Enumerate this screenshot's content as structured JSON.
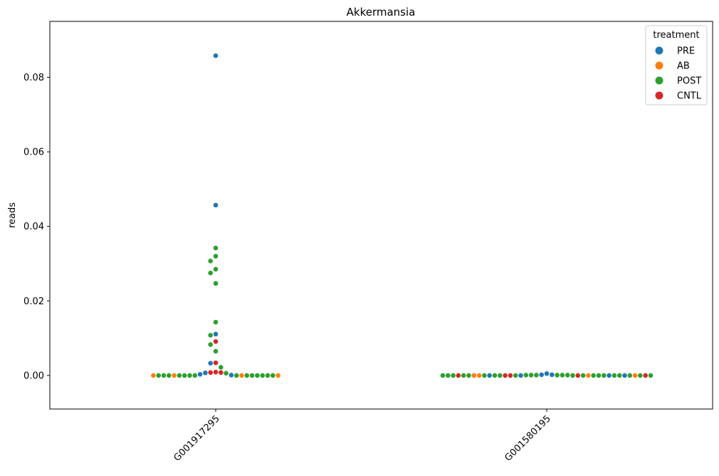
{
  "chart_data": {
    "type": "scatter",
    "subtype": "swarm",
    "title": "Akkermansia",
    "xlabel": "",
    "ylabel": "reads",
    "categories": [
      "G001917295",
      "G001580195"
    ],
    "ylim": [
      -0.009,
      0.095
    ],
    "yticks": [
      0.0,
      0.02,
      0.04,
      0.06,
      0.08
    ],
    "ytick_labels": [
      "0.00",
      "0.02",
      "0.04",
      "0.06",
      "0.08"
    ],
    "grid": false,
    "legend": {
      "title": "treatment",
      "placement": "top-right",
      "entries": [
        {
          "label": "PRE",
          "color": "#1f77b4"
        },
        {
          "label": "AB",
          "color": "#ff7f0e"
        },
        {
          "label": "POST",
          "color": "#2ca02c"
        },
        {
          "label": "CNTL",
          "color": "#d62728"
        }
      ]
    },
    "series": [
      {
        "name": "G001917295",
        "points": [
          {
            "t": "PRE",
            "y": 0.0858
          },
          {
            "t": "PRE",
            "y": 0.0457
          },
          {
            "t": "POST",
            "y": 0.0342
          },
          {
            "t": "POST",
            "y": 0.032
          },
          {
            "t": "POST",
            "y": 0.0307
          },
          {
            "t": "POST",
            "y": 0.0285
          },
          {
            "t": "POST",
            "y": 0.0275
          },
          {
            "t": "POST",
            "y": 0.0247
          },
          {
            "t": "POST",
            "y": 0.0143
          },
          {
            "t": "PRE",
            "y": 0.0111
          },
          {
            "t": "POST",
            "y": 0.0108
          },
          {
            "t": "CNTL",
            "y": 0.0091
          },
          {
            "t": "POST",
            "y": 0.0083
          },
          {
            "t": "POST",
            "y": 0.0065
          },
          {
            "t": "PRE",
            "y": 0.0033
          },
          {
            "t": "CNTL",
            "y": 0.0034
          },
          {
            "t": "POST",
            "y": 0.0022
          },
          {
            "t": "CNTL",
            "y": 0.0009
          },
          {
            "t": "CNTL",
            "y": 0.0008
          },
          {
            "t": "PRE",
            "y": 0.0003
          },
          {
            "t": "PRE",
            "y": 0.0001
          },
          {
            "t": "POST",
            "y": 0.0
          },
          {
            "t": "POST",
            "y": 0.0
          },
          {
            "t": "POST",
            "y": 0.0
          },
          {
            "t": "AB",
            "y": 0.0
          },
          {
            "t": "POST",
            "y": 0.0
          },
          {
            "t": "POST",
            "y": 0.0
          },
          {
            "t": "POST",
            "y": 0.0
          },
          {
            "t": "POST",
            "y": 0.0
          },
          {
            "t": "AB",
            "y": 0.0
          },
          {
            "t": "POST",
            "y": 0.0
          },
          {
            "t": "POST",
            "y": 0.0
          },
          {
            "t": "POST",
            "y": 0.0
          },
          {
            "t": "POST",
            "y": 0.0
          },
          {
            "t": "POST",
            "y": 0.0
          },
          {
            "t": "POST",
            "y": 0.0
          },
          {
            "t": "POST",
            "y": 0.0
          },
          {
            "t": "AB",
            "y": 0.0
          },
          {
            "t": "AB",
            "y": 0.0
          },
          {
            "t": "POST",
            "y": 0.0006
          },
          {
            "t": "PRE",
            "y": 0.0007
          },
          {
            "t": "CNTL",
            "y": 0.0008
          }
        ]
      },
      {
        "name": "G001580195",
        "points": [
          {
            "t": "PRE",
            "y": 0.0005
          },
          {
            "t": "PRE",
            "y": 0.0002
          },
          {
            "t": "POST",
            "y": 0.0001
          },
          {
            "t": "POST",
            "y": 0.0001
          },
          {
            "t": "POST",
            "y": 0.0001
          },
          {
            "t": "PRE",
            "y": 0.0
          },
          {
            "t": "POST",
            "y": 0.0
          },
          {
            "t": "POST",
            "y": 0.0
          },
          {
            "t": "CNTL",
            "y": 0.0
          },
          {
            "t": "CNTL",
            "y": 0.0
          },
          {
            "t": "POST",
            "y": 0.0
          },
          {
            "t": "CNTL",
            "y": 0.0
          },
          {
            "t": "AB",
            "y": 0.0
          },
          {
            "t": "POST",
            "y": 0.0
          },
          {
            "t": "POST",
            "y": 0.0
          },
          {
            "t": "POST",
            "y": 0.0
          },
          {
            "t": "POST",
            "y": 0.0
          },
          {
            "t": "PRE",
            "y": 0.0
          },
          {
            "t": "POST",
            "y": 0.0
          },
          {
            "t": "POST",
            "y": 0.0
          },
          {
            "t": "PRE",
            "y": 0.0
          },
          {
            "t": "AB",
            "y": 0.0
          },
          {
            "t": "POST",
            "y": 0.0
          },
          {
            "t": "AB",
            "y": 0.0
          },
          {
            "t": "POST",
            "y": 0.0
          },
          {
            "t": "POST",
            "y": 0.0
          },
          {
            "t": "PRE",
            "y": 0.0
          },
          {
            "t": "POST",
            "y": 0.0
          },
          {
            "t": "POST",
            "y": 0.0
          },
          {
            "t": "CNTL",
            "y": 0.0
          },
          {
            "t": "AB",
            "y": 0.0
          },
          {
            "t": "POST",
            "y": 0.0
          },
          {
            "t": "POST",
            "y": 0.0
          },
          {
            "t": "POST",
            "y": 0.0
          },
          {
            "t": "CNTL",
            "y": 0.0
          },
          {
            "t": "POST",
            "y": 0.0
          },
          {
            "t": "POST",
            "y": 0.0
          },
          {
            "t": "POST",
            "y": 0.0001
          },
          {
            "t": "POST",
            "y": 0.0001
          },
          {
            "t": "POST",
            "y": 0.0001
          },
          {
            "t": "PRE",
            "y": 0.0002
          }
        ]
      }
    ]
  }
}
